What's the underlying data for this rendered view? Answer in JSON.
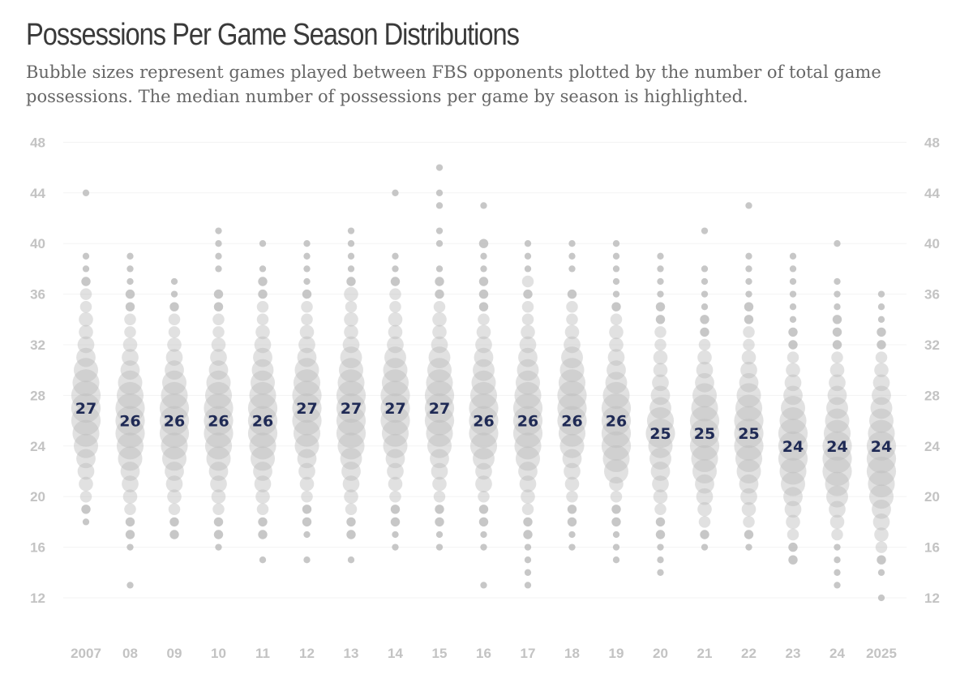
{
  "title": "Possessions Per Game Season Distributions",
  "subtitle": "Bubble sizes represent games played between FBS opponents plotted by the number of total game possessions. The median number of possessions per game by season is highlighted.",
  "colors": {
    "bubble": "#bdbdbd",
    "median_label": "#1f2a55",
    "tick": "#c3c3c3",
    "grid": "#f3f3f3"
  },
  "chart_data": {
    "type": "scatter",
    "description_kind": "bubble strip plot",
    "x_tick_labels": [
      "2007",
      "08",
      "09",
      "10",
      "11",
      "12",
      "13",
      "14",
      "15",
      "16",
      "17",
      "18",
      "19",
      "20",
      "21",
      "22",
      "23",
      "24",
      "2025"
    ],
    "y_ticks": [
      12,
      16,
      20,
      24,
      28,
      32,
      36,
      40,
      44,
      48
    ],
    "ylim": [
      11,
      49
    ],
    "grid": true,
    "y_axis_both_sides": true,
    "series": [
      {
        "season": "2007",
        "median": 27,
        "counts": {
          "18": 1,
          "19": 2,
          "20": 3,
          "21": 4,
          "22": 5,
          "23": 6,
          "24": 8,
          "25": 9,
          "26": 10,
          "27": 10,
          "28": 10,
          "29": 9,
          "30": 8,
          "31": 6,
          "32": 5,
          "33": 4,
          "34": 4,
          "35": 3,
          "36": 3,
          "37": 2,
          "38": 1,
          "39": 1,
          "44": 1
        }
      },
      {
        "season": "08",
        "median": 26,
        "counts": {
          "13": 1,
          "16": 1,
          "17": 2,
          "18": 2,
          "19": 3,
          "20": 4,
          "21": 5,
          "22": 6,
          "23": 8,
          "24": 9,
          "25": 10,
          "26": 10,
          "27": 10,
          "28": 9,
          "29": 8,
          "30": 6,
          "31": 5,
          "32": 4,
          "33": 3,
          "34": 3,
          "35": 2,
          "36": 2,
          "37": 1,
          "38": 1,
          "39": 1
        }
      },
      {
        "season": "09",
        "median": 26,
        "counts": {
          "17": 2,
          "18": 2,
          "19": 3,
          "20": 4,
          "21": 5,
          "22": 6,
          "23": 8,
          "24": 9,
          "25": 10,
          "26": 10,
          "27": 10,
          "28": 9,
          "29": 8,
          "30": 6,
          "31": 5,
          "32": 4,
          "33": 3,
          "34": 3,
          "35": 2,
          "36": 1,
          "37": 1
        }
      },
      {
        "season": "10",
        "median": 26,
        "counts": {
          "16": 1,
          "17": 2,
          "18": 2,
          "19": 3,
          "20": 4,
          "21": 5,
          "22": 6,
          "23": 8,
          "24": 9,
          "25": 10,
          "26": 10,
          "27": 10,
          "28": 9,
          "29": 8,
          "30": 6,
          "31": 5,
          "32": 4,
          "33": 3,
          "34": 3,
          "35": 2,
          "36": 2,
          "38": 1,
          "39": 1,
          "40": 1,
          "41": 1
        }
      },
      {
        "season": "11",
        "median": 26,
        "counts": {
          "15": 1,
          "17": 2,
          "18": 2,
          "19": 3,
          "20": 4,
          "21": 5,
          "22": 6,
          "23": 8,
          "24": 9,
          "25": 10,
          "26": 10,
          "27": 10,
          "28": 9,
          "29": 8,
          "30": 7,
          "31": 6,
          "32": 5,
          "33": 4,
          "34": 3,
          "35": 3,
          "36": 2,
          "37": 2,
          "38": 1,
          "40": 1
        }
      },
      {
        "season": "12",
        "median": 27,
        "counts": {
          "15": 1,
          "17": 1,
          "18": 2,
          "19": 2,
          "20": 3,
          "21": 4,
          "22": 5,
          "23": 6,
          "24": 8,
          "25": 9,
          "26": 10,
          "27": 10,
          "28": 10,
          "29": 9,
          "30": 8,
          "31": 6,
          "32": 5,
          "33": 4,
          "34": 3,
          "35": 3,
          "36": 2,
          "37": 1,
          "38": 1,
          "39": 1,
          "40": 1
        }
      },
      {
        "season": "13",
        "median": 27,
        "counts": {
          "15": 1,
          "17": 2,
          "18": 2,
          "19": 3,
          "20": 4,
          "21": 5,
          "22": 6,
          "23": 7,
          "24": 9,
          "25": 10,
          "26": 10,
          "27": 10,
          "28": 10,
          "29": 9,
          "30": 8,
          "31": 7,
          "32": 5,
          "33": 4,
          "34": 4,
          "35": 3,
          "36": 4,
          "37": 2,
          "38": 1,
          "39": 1,
          "40": 1,
          "41": 1
        }
      },
      {
        "season": "14",
        "median": 27,
        "counts": {
          "16": 1,
          "17": 1,
          "18": 2,
          "19": 2,
          "20": 3,
          "21": 4,
          "22": 5,
          "23": 6,
          "24": 8,
          "25": 9,
          "26": 10,
          "27": 10,
          "28": 10,
          "29": 9,
          "30": 8,
          "31": 7,
          "32": 5,
          "33": 4,
          "34": 4,
          "35": 3,
          "36": 3,
          "37": 2,
          "38": 1,
          "39": 1,
          "44": 1
        }
      },
      {
        "season": "15",
        "median": 27,
        "counts": {
          "16": 1,
          "17": 1,
          "18": 2,
          "19": 2,
          "20": 3,
          "21": 4,
          "22": 5,
          "23": 6,
          "24": 8,
          "25": 9,
          "26": 10,
          "27": 10,
          "28": 10,
          "29": 9,
          "30": 8,
          "31": 7,
          "32": 5,
          "33": 4,
          "34": 4,
          "35": 3,
          "36": 2,
          "37": 2,
          "38": 1,
          "40": 1,
          "41": 1,
          "43": 1,
          "44": 1,
          "46": 1
        }
      },
      {
        "season": "16",
        "median": 26,
        "counts": {
          "13": 1,
          "16": 1,
          "17": 1,
          "18": 2,
          "19": 2,
          "20": 3,
          "21": 5,
          "22": 5,
          "23": 7,
          "24": 9,
          "25": 10,
          "26": 10,
          "27": 10,
          "28": 9,
          "29": 8,
          "30": 7,
          "31": 6,
          "32": 5,
          "33": 4,
          "34": 3,
          "35": 2,
          "36": 2,
          "37": 2,
          "38": 1,
          "39": 1,
          "40": 2,
          "43": 1
        }
      },
      {
        "season": "17",
        "median": 26,
        "counts": {
          "13": 1,
          "14": 1,
          "15": 1,
          "16": 1,
          "17": 2,
          "18": 2,
          "19": 3,
          "20": 4,
          "21": 5,
          "22": 6,
          "23": 8,
          "24": 9,
          "25": 10,
          "26": 10,
          "27": 10,
          "28": 9,
          "29": 8,
          "30": 7,
          "31": 6,
          "32": 5,
          "33": 4,
          "34": 3,
          "35": 3,
          "36": 2,
          "37": 3,
          "38": 1,
          "39": 1,
          "40": 1
        }
      },
      {
        "season": "18",
        "median": 26,
        "counts": {
          "16": 1,
          "17": 1,
          "18": 2,
          "19": 2,
          "20": 3,
          "21": 4,
          "22": 5,
          "23": 6,
          "24": 8,
          "25": 9,
          "26": 10,
          "27": 10,
          "28": 10,
          "29": 9,
          "30": 8,
          "31": 7,
          "32": 5,
          "33": 4,
          "34": 3,
          "35": 3,
          "36": 2,
          "38": 1,
          "39": 1,
          "40": 1
        }
      },
      {
        "season": "19",
        "median": 26,
        "counts": {
          "15": 1,
          "16": 1,
          "17": 1,
          "18": 2,
          "19": 2,
          "20": 3,
          "21": 4,
          "22": 8,
          "23": 9,
          "24": 10,
          "25": 10,
          "26": 10,
          "27": 10,
          "28": 9,
          "29": 7,
          "30": 6,
          "31": 5,
          "32": 4,
          "33": 4,
          "34": 3,
          "35": 2,
          "36": 1,
          "37": 1,
          "38": 1,
          "39": 1,
          "40": 1
        }
      },
      {
        "season": "20",
        "median": 25,
        "counts": {
          "14": 1,
          "15": 1,
          "16": 1,
          "17": 2,
          "18": 2,
          "19": 3,
          "20": 4,
          "21": 5,
          "22": 6,
          "23": 7,
          "24": 8,
          "25": 10,
          "26": 9,
          "27": 7,
          "28": 6,
          "29": 5,
          "30": 4,
          "31": 4,
          "32": 3,
          "33": 3,
          "34": 2,
          "35": 2,
          "36": 1,
          "37": 1,
          "38": 1,
          "39": 1
        }
      },
      {
        "season": "21",
        "median": 25,
        "counts": {
          "16": 1,
          "17": 2,
          "18": 3,
          "19": 4,
          "20": 5,
          "21": 6,
          "22": 8,
          "23": 9,
          "24": 10,
          "25": 10,
          "26": 10,
          "27": 9,
          "28": 8,
          "29": 6,
          "30": 5,
          "31": 4,
          "32": 3,
          "33": 2,
          "34": 2,
          "35": 1,
          "36": 1,
          "37": 1,
          "38": 1,
          "41": 1
        }
      },
      {
        "season": "22",
        "median": 25,
        "counts": {
          "16": 1,
          "17": 2,
          "18": 3,
          "19": 4,
          "20": 5,
          "21": 6,
          "22": 8,
          "23": 9,
          "24": 10,
          "25": 10,
          "26": 10,
          "27": 9,
          "28": 8,
          "29": 6,
          "30": 5,
          "31": 4,
          "32": 3,
          "33": 3,
          "34": 2,
          "35": 2,
          "36": 1,
          "37": 1,
          "38": 1,
          "39": 1,
          "43": 1
        }
      },
      {
        "season": "23",
        "median": 24,
        "counts": {
          "15": 2,
          "16": 2,
          "17": 3,
          "18": 4,
          "19": 5,
          "20": 6,
          "21": 8,
          "22": 9,
          "23": 10,
          "24": 10,
          "25": 10,
          "26": 9,
          "27": 8,
          "28": 6,
          "29": 5,
          "30": 4,
          "31": 3,
          "32": 2,
          "33": 2,
          "34": 1,
          "35": 1,
          "36": 1,
          "37": 1,
          "38": 1,
          "39": 1
        }
      },
      {
        "season": "24",
        "median": 24,
        "counts": {
          "13": 1,
          "14": 1,
          "15": 1,
          "16": 1,
          "17": 3,
          "18": 4,
          "19": 5,
          "20": 7,
          "21": 8,
          "22": 10,
          "23": 10,
          "24": 10,
          "25": 9,
          "26": 8,
          "27": 7,
          "28": 6,
          "29": 5,
          "30": 4,
          "31": 3,
          "32": 2,
          "33": 2,
          "34": 2,
          "35": 1,
          "36": 1,
          "37": 1,
          "40": 1
        }
      },
      {
        "season": "2025",
        "median": 24,
        "counts": {
          "12": 1,
          "14": 1,
          "15": 2,
          "16": 3,
          "17": 4,
          "18": 5,
          "19": 6,
          "20": 8,
          "21": 9,
          "22": 10,
          "23": 10,
          "24": 10,
          "25": 9,
          "26": 8,
          "27": 7,
          "28": 6,
          "29": 5,
          "30": 4,
          "31": 3,
          "32": 2,
          "33": 2,
          "34": 1,
          "35": 1,
          "36": 1
        }
      }
    ]
  }
}
